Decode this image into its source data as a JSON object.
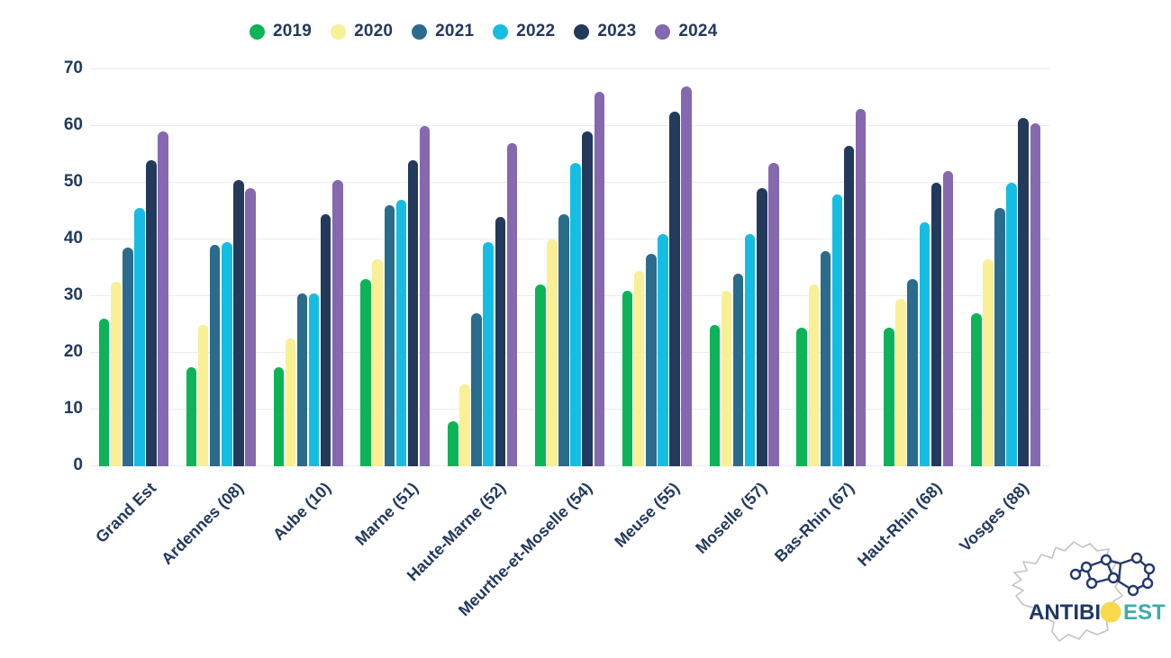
{
  "chart_data": {
    "type": "bar",
    "title": "",
    "xlabel": "",
    "ylabel": "",
    "ylim": [
      0,
      70
    ],
    "yticks": [
      0,
      10,
      20,
      30,
      40,
      50,
      60,
      70
    ],
    "grid": true,
    "legend_position": "top",
    "categories": [
      "Grand Est",
      "Ardennes (08)",
      "Aube (10)",
      "Marne (51)",
      "Haute-Marne (52)",
      "Meurthe-et-Moselle (54)",
      "Meuse (55)",
      "Moselle (57)",
      "Bas-Rhin (67)",
      "Haut-Rhin (68)",
      "Vosges (88)"
    ],
    "series": [
      {
        "name": "2019",
        "color": "#0db357",
        "values": [
          26,
          17.5,
          17.5,
          33,
          8,
          32,
          31,
          25,
          24.5,
          24.5,
          27
        ]
      },
      {
        "name": "2020",
        "color": "#f9ef95",
        "values": [
          32.5,
          25,
          22.5,
          36.5,
          14.5,
          40,
          34.5,
          31,
          32,
          29.5,
          36.5
        ]
      },
      {
        "name": "2021",
        "color": "#2b6b8b",
        "values": [
          38.5,
          39,
          30.5,
          46,
          27,
          44.5,
          37.5,
          34,
          38,
          33,
          45.5
        ]
      },
      {
        "name": "2022",
        "color": "#15bde3",
        "values": [
          45.5,
          39.5,
          30.5,
          47,
          39.5,
          53.5,
          41,
          41,
          48,
          43,
          50
        ]
      },
      {
        "name": "2023",
        "color": "#233a5c",
        "values": [
          54,
          50.5,
          44.5,
          54,
          44,
          59,
          62.5,
          49,
          56.5,
          50,
          61.5
        ]
      },
      {
        "name": "2024",
        "color": "#8568ae",
        "values": [
          59,
          49,
          50.5,
          60,
          57,
          66,
          67,
          53.5,
          63,
          52,
          60.5
        ]
      }
    ]
  },
  "axis": {
    "text_color": "#21395e",
    "grid_color": "#e9ebf2"
  },
  "logo": {
    "part1": "ANTIBI",
    "o": "O",
    "part2": "EST",
    "navy": "#1f3864",
    "teal": "#3fa9ac",
    "yellow": "#f7d94b",
    "outline": "#c3c3c3"
  }
}
